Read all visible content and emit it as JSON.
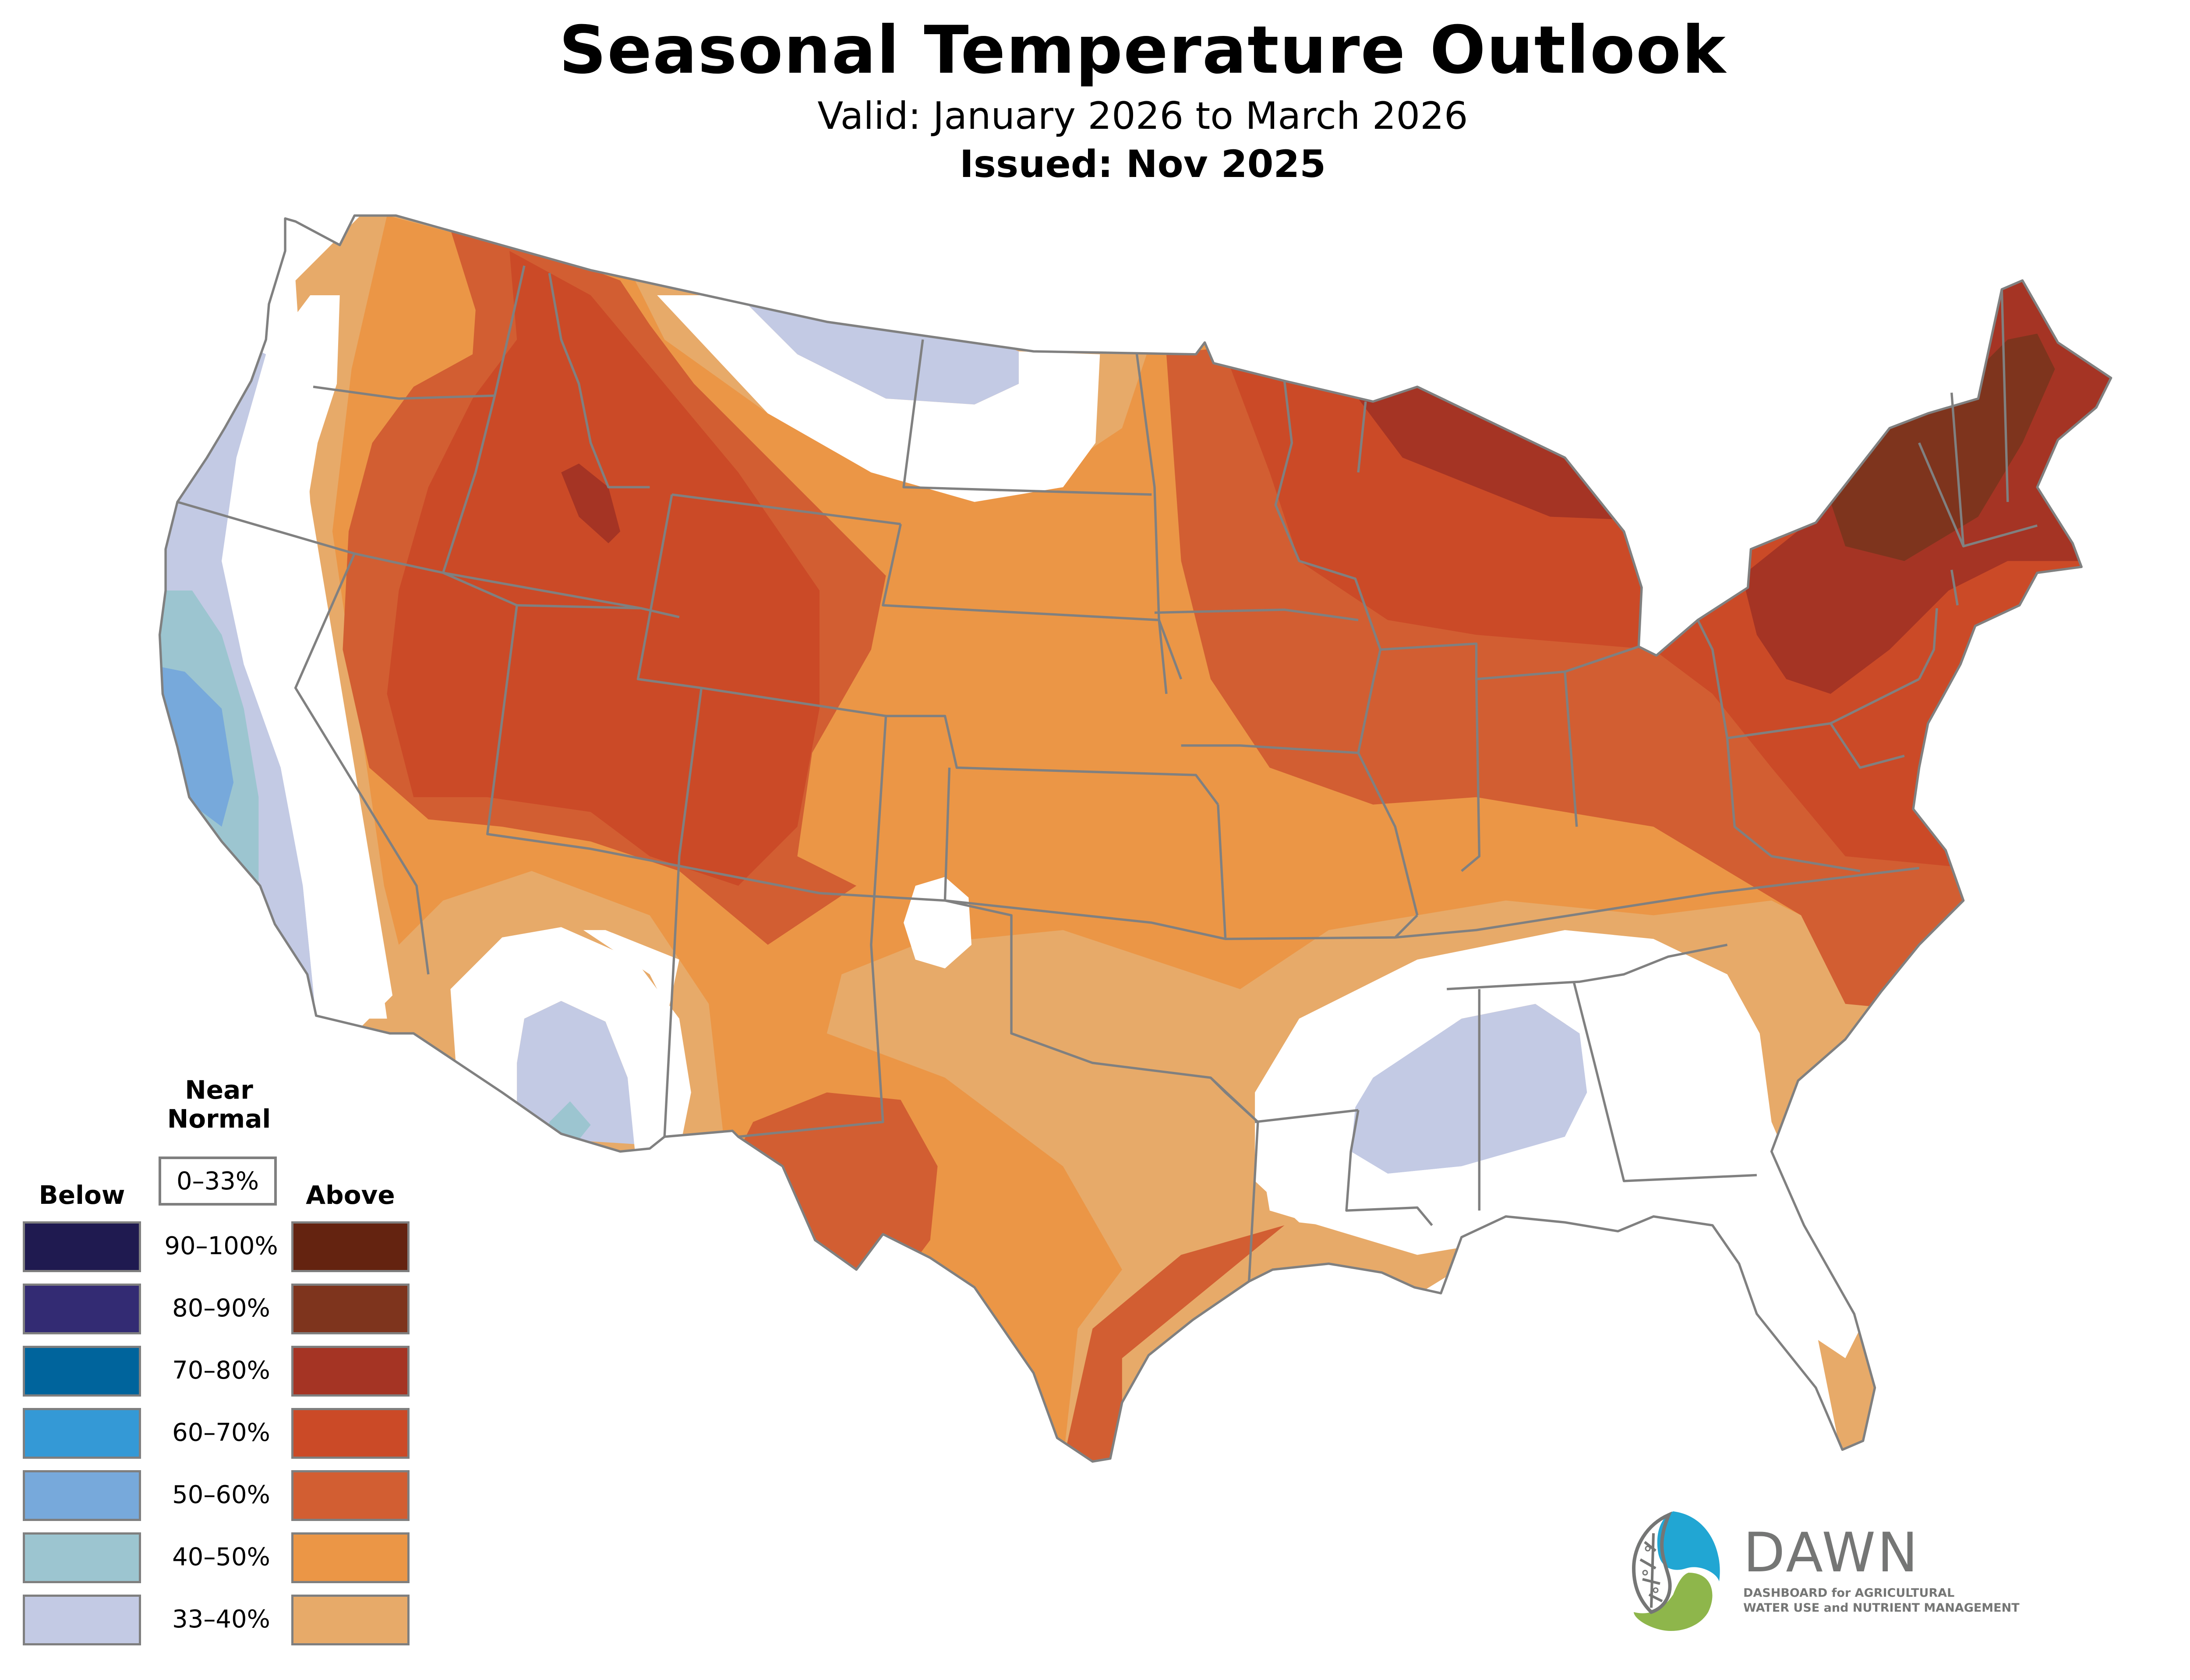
{
  "header": {
    "title": "Seasonal Temperature Outlook",
    "valid": "Valid: January 2026 to March 2026",
    "issued": "Issued: Nov 2025"
  },
  "legend": {
    "below_label": "Below",
    "above_label": "Above",
    "near_normal_line1": "Near",
    "near_normal_line2": "Normal",
    "near_normal_range": "0–33%",
    "near_normal_color": "#ffffff",
    "rows": [
      {
        "range": "90–100%",
        "below_color": "#1f1a50",
        "above_color": "#642310"
      },
      {
        "range": "80–90%",
        "below_color": "#332b73",
        "above_color": "#7e341d"
      },
      {
        "range": "70–80%",
        "below_color": "#00649c",
        "above_color": "#a53424"
      },
      {
        "range": "60–70%",
        "below_color": "#3499d6",
        "above_color": "#cb4a27"
      },
      {
        "range": "50–60%",
        "below_color": "#77a9db",
        "above_color": "#d25e32"
      },
      {
        "range": "40–50%",
        "below_color": "#9cc5d0",
        "above_color": "#eb9646"
      },
      {
        "range": "33–40%",
        "below_color": "#c3cae4",
        "above_color": "#e7aa69"
      }
    ]
  },
  "logo": {
    "name": "DAWN",
    "tagline_line1": "DASHBOARD for AGRICULTURAL",
    "tagline_line2": "WATER USE and NUTRIENT MANAGEMENT",
    "blue": "#21a6d3",
    "green": "#8eb64b",
    "gray": "#757675"
  },
  "map": {
    "state_border_color": "#808080"
  }
}
